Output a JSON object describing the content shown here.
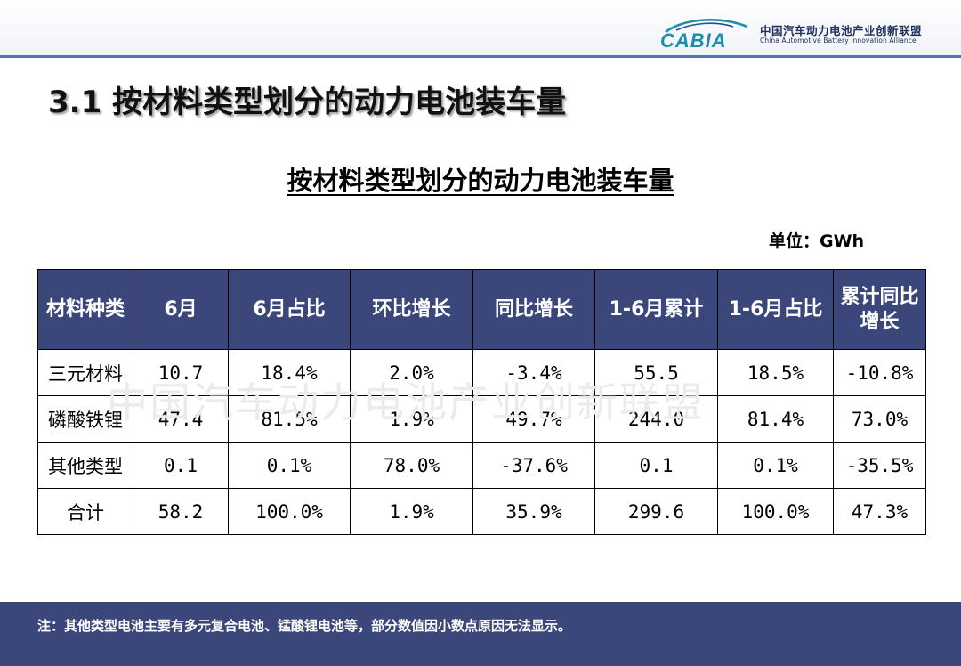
{
  "logo": {
    "mark_text": "CABIA",
    "cn_name": "中国汽车动力电池产业创新联盟",
    "en_name": "China Automotive Battery Innovation Alliance",
    "brand_color": "#1a8fb0"
  },
  "page_title": "3.1  按材料类型划分的动力电池装车量",
  "table_title": "按材料类型划分的动力电池装车量",
  "unit": "单位：GWh",
  "watermark": "中国汽车动力电池产业创新联盟",
  "table": {
    "headers": [
      "材料种类",
      "6月",
      "6月占比",
      "环比增长",
      "同比增长",
      "1-6月累计",
      "1-6月占比",
      "累计同比增长"
    ],
    "rows": [
      [
        "三元材料",
        "10.7",
        "18.4%",
        "2.0%",
        "-3.4%",
        "55.5",
        "18.5%",
        "-10.8%"
      ],
      [
        "磷酸铁锂",
        "47.4",
        "81.5%",
        "1.9%",
        "49.7%",
        "244.0",
        "81.4%",
        "73.0%"
      ],
      [
        "其他类型",
        "0.1",
        "0.1%",
        "78.0%",
        "-37.6%",
        "0.1",
        "0.1%",
        "-35.5%"
      ],
      [
        "合计",
        "58.2",
        "100.0%",
        "1.9%",
        "35.9%",
        "299.6",
        "100.0%",
        "47.3%"
      ]
    ]
  },
  "footer_note": "注：其他类型电池主要有多元复合电池、锰酸锂电池等，部分数值因小数点原因无法显示。",
  "colors": {
    "header_bg": "#3b477a",
    "rule": "#5a72b5",
    "footer_bg": "#3b477a"
  }
}
